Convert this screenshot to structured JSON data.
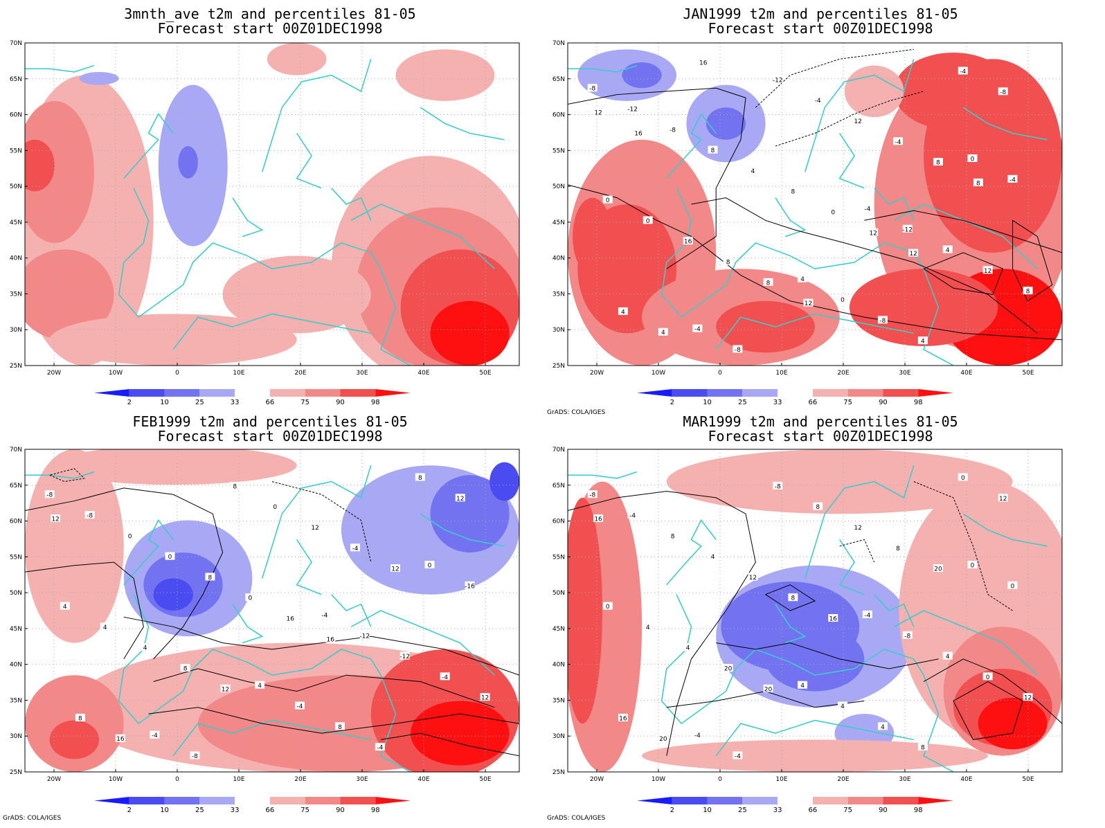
{
  "colors": {
    "cool2": "#1a1aff",
    "cool10": "#4b4bf2",
    "cool25": "#7373f2",
    "cool33": "#a8a8f5",
    "warm66": "#f5b0b0",
    "warm75": "#f28888",
    "warm90": "#f25050",
    "warm98": "#ff1010",
    "coast": "#3ccccc",
    "contour": "#000000"
  },
  "credit": "GrADS: COLA/IGES",
  "axes": {
    "lat_labels": [
      "70N",
      "65N",
      "60N",
      "55N",
      "50N",
      "45N",
      "40N",
      "35N",
      "30N",
      "25N"
    ],
    "lon_labels": [
      "20W",
      "10W",
      "0",
      "10E",
      "20E",
      "30E",
      "40E",
      "50E"
    ]
  },
  "colorbar_labels": [
    "2",
    "10",
    "25",
    "33",
    "66",
    "75",
    "90",
    "98"
  ],
  "panels": [
    {
      "title1": "3mnth_ave t2m and percentiles 81-05",
      "title2": "Forecast start 00Z01DEC1998",
      "contour_labels": []
    },
    {
      "title1": "JAN1999 t2m and percentiles 81-05",
      "title2": "Forecast start 00Z01DEC1998",
      "contour_labels": [
        "-8",
        "-4",
        "-4",
        "0",
        "4",
        "-12",
        "-12",
        "-8",
        "-4",
        "0",
        "-8",
        "4",
        "-12",
        "0",
        "-8",
        "8",
        "12",
        "-4",
        "0",
        "4",
        "4",
        "8",
        "12",
        "16",
        "-4",
        "8",
        "4",
        "-4",
        "8",
        "-8",
        "0",
        "4",
        "8",
        "8",
        "12",
        "12",
        "16",
        "8",
        "12",
        "16",
        "12"
      ]
    },
    {
      "title1": "FEB1999 t2m and percentiles 81-05",
      "title2": "Forecast start 00Z01DEC1998",
      "contour_labels": [
        "-8",
        "-4",
        "-4",
        "0",
        "4",
        "-8",
        "-12",
        "-8",
        "-16",
        "-4",
        "0",
        "-12",
        "8",
        "4",
        "8",
        "0",
        "-4",
        "0",
        "4",
        "-4",
        "8",
        "12",
        "12",
        "4",
        "8",
        "0",
        "8",
        "-4",
        "8",
        "12",
        "16",
        "16",
        "12",
        "12",
        "12",
        "16"
      ]
    },
    {
      "title1": "MAR1999 t2m and percentiles 81-05",
      "title2": "Forecast start 00Z01DEC1998",
      "contour_labels": [
        "-8",
        "-4",
        "-4",
        "0",
        "4",
        "-4",
        "-8",
        "-4",
        "0",
        "4",
        "8",
        "4",
        "-8",
        "0",
        "4",
        "4",
        "0",
        "8",
        "4",
        "8",
        "12",
        "12",
        "12",
        "4",
        "0",
        "8",
        "16",
        "8",
        "20",
        "12",
        "16",
        "20",
        "20",
        "20",
        "16"
      ]
    }
  ]
}
